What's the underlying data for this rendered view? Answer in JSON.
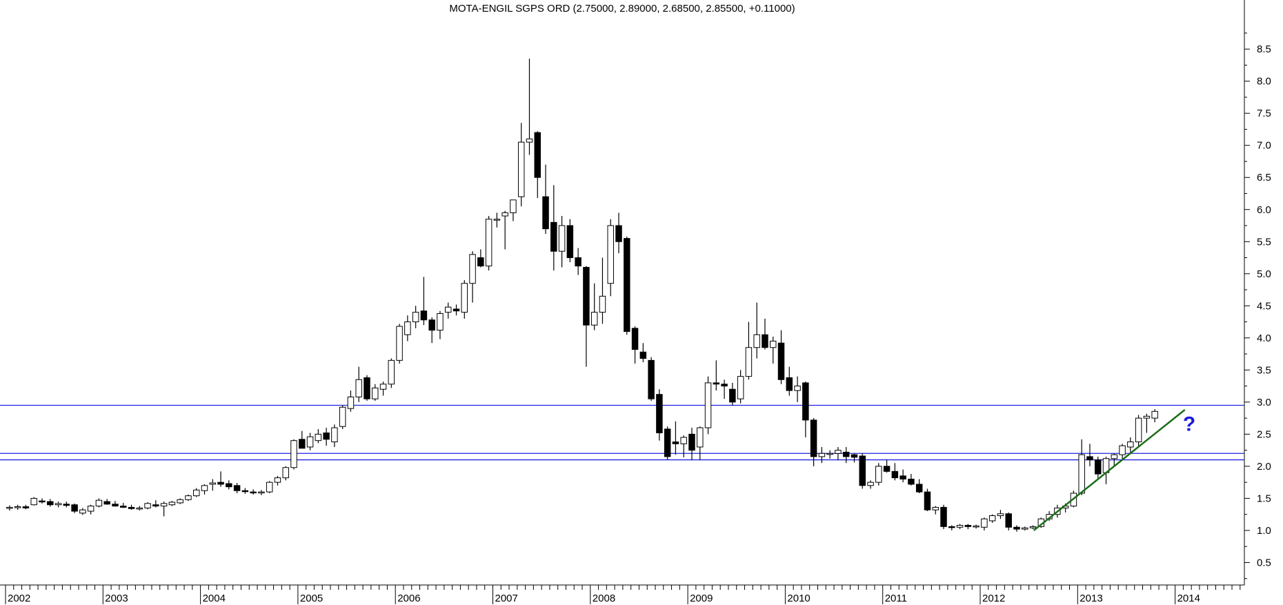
{
  "chart_data": {
    "type": "candlestick",
    "title": "MOTA-ENGIL SGPS ORD (2.75000, 2.89000, 2.68500, 2.85500, +0.11000)",
    "xlabel": "",
    "ylabel": "",
    "period": "monthly",
    "y_ticks": [
      0.5,
      1.0,
      1.5,
      2.0,
      2.5,
      3.0,
      3.5,
      4.0,
      4.5,
      5.0,
      5.5,
      6.0,
      6.5,
      7.0,
      7.5,
      8.0,
      8.5
    ],
    "y_tick_labels": [
      "0.5",
      "1.0",
      "1.5",
      "2.0",
      "2.5",
      "3.0",
      "3.5",
      "4.0",
      "4.5",
      "5.0",
      "5.5",
      "6.0",
      "6.5",
      "7.0",
      "7.5",
      "8.0",
      "8.5"
    ],
    "ylim": [
      0.15,
      9.05
    ],
    "x_year_labels": [
      "2002",
      "2003",
      "2004",
      "2005",
      "2006",
      "2007",
      "2008",
      "2009",
      "2010",
      "2011",
      "2012",
      "2013",
      "2014"
    ],
    "x_start_year": 2002,
    "x_end_year": 2015,
    "horizontal_lines": [
      2.95,
      2.2,
      2.1
    ],
    "trendline": {
      "from": {
        "x": 2012.55,
        "y": 1.0
      },
      "to": {
        "x": 2014.1,
        "y": 2.88
      }
    },
    "annotation": {
      "text": "?",
      "x": 2014.08,
      "y": 2.55
    },
    "colors": {
      "up_fill": "#ffffff",
      "down_fill": "#000000",
      "hline": "#2020e0",
      "trend": "#1a6e1a",
      "annotation": "#1a1ae0",
      "axis": "#000000"
    },
    "ohlc_monthly": [
      [
        1.36,
        1.39,
        1.31,
        1.36
      ],
      [
        1.36,
        1.4,
        1.32,
        1.37
      ],
      [
        1.37,
        1.4,
        1.33,
        1.35
      ],
      [
        1.4,
        1.52,
        1.39,
        1.5
      ],
      [
        1.46,
        1.5,
        1.42,
        1.45
      ],
      [
        1.45,
        1.49,
        1.37,
        1.4
      ],
      [
        1.4,
        1.45,
        1.36,
        1.42
      ],
      [
        1.41,
        1.45,
        1.36,
        1.39
      ],
      [
        1.4,
        1.42,
        1.27,
        1.3
      ],
      [
        1.27,
        1.35,
        1.24,
        1.32
      ],
      [
        1.3,
        1.4,
        1.25,
        1.38
      ],
      [
        1.38,
        1.5,
        1.36,
        1.47
      ],
      [
        1.45,
        1.49,
        1.4,
        1.41
      ],
      [
        1.41,
        1.46,
        1.37,
        1.38
      ],
      [
        1.38,
        1.43,
        1.35,
        1.36
      ],
      [
        1.36,
        1.4,
        1.32,
        1.34
      ],
      [
        1.34,
        1.38,
        1.31,
        1.35
      ],
      [
        1.35,
        1.44,
        1.33,
        1.42
      ],
      [
        1.4,
        1.47,
        1.36,
        1.38
      ],
      [
        1.38,
        1.45,
        1.22,
        1.42
      ],
      [
        1.4,
        1.46,
        1.38,
        1.44
      ],
      [
        1.43,
        1.5,
        1.41,
        1.48
      ],
      [
        1.48,
        1.56,
        1.46,
        1.54
      ],
      [
        1.54,
        1.66,
        1.52,
        1.63
      ],
      [
        1.62,
        1.72,
        1.56,
        1.7
      ],
      [
        1.72,
        1.8,
        1.62,
        1.74
      ],
      [
        1.75,
        1.92,
        1.68,
        1.72
      ],
      [
        1.73,
        1.78,
        1.64,
        1.68
      ],
      [
        1.7,
        1.74,
        1.58,
        1.62
      ],
      [
        1.62,
        1.66,
        1.57,
        1.61
      ],
      [
        1.6,
        1.64,
        1.56,
        1.59
      ],
      [
        1.59,
        1.63,
        1.55,
        1.6
      ],
      [
        1.6,
        1.77,
        1.58,
        1.75
      ],
      [
        1.75,
        1.85,
        1.7,
        1.82
      ],
      [
        1.82,
        2.0,
        1.78,
        1.98
      ],
      [
        1.98,
        2.42,
        1.95,
        2.4
      ],
      [
        2.42,
        2.55,
        2.3,
        2.28
      ],
      [
        2.3,
        2.52,
        2.25,
        2.46
      ],
      [
        2.4,
        2.58,
        2.36,
        2.5
      ],
      [
        2.52,
        2.6,
        2.32,
        2.42
      ],
      [
        2.38,
        2.65,
        2.3,
        2.6
      ],
      [
        2.62,
        2.95,
        2.58,
        2.92
      ],
      [
        2.9,
        3.18,
        2.85,
        3.08
      ],
      [
        3.08,
        3.55,
        3.0,
        3.35
      ],
      [
        3.38,
        3.42,
        3.02,
        3.05
      ],
      [
        3.05,
        3.28,
        3.02,
        3.22
      ],
      [
        3.2,
        3.32,
        3.1,
        3.28
      ],
      [
        3.28,
        3.68,
        3.22,
        3.65
      ],
      [
        3.65,
        4.22,
        3.6,
        4.18
      ],
      [
        4.05,
        4.35,
        3.95,
        4.25
      ],
      [
        4.25,
        4.5,
        4.15,
        4.4
      ],
      [
        4.42,
        4.95,
        4.2,
        4.28
      ],
      [
        4.28,
        4.32,
        3.92,
        4.12
      ],
      [
        4.12,
        4.42,
        3.98,
        4.38
      ],
      [
        4.4,
        4.55,
        4.3,
        4.48
      ],
      [
        4.45,
        4.52,
        4.35,
        4.42
      ],
      [
        4.4,
        4.9,
        4.3,
        4.85
      ],
      [
        4.85,
        5.35,
        4.55,
        5.3
      ],
      [
        5.25,
        5.38,
        5.1,
        5.12
      ],
      [
        5.12,
        5.9,
        5.05,
        5.85
      ],
      [
        5.85,
        5.95,
        5.72,
        5.85
      ],
      [
        5.9,
        5.98,
        5.38,
        5.95
      ],
      [
        5.95,
        6.15,
        5.82,
        6.15
      ],
      [
        6.2,
        7.35,
        6.05,
        7.05
      ],
      [
        7.05,
        8.35,
        6.85,
        7.1
      ],
      [
        7.2,
        7.22,
        6.18,
        6.5
      ],
      [
        6.2,
        6.7,
        5.62,
        5.7
      ],
      [
        5.8,
        6.38,
        5.05,
        5.35
      ],
      [
        5.35,
        5.9,
        5.1,
        5.75
      ],
      [
        5.75,
        5.85,
        5.18,
        5.25
      ],
      [
        5.25,
        5.4,
        4.98,
        5.12
      ],
      [
        5.1,
        5.12,
        3.55,
        4.2
      ],
      [
        4.2,
        4.85,
        4.12,
        4.4
      ],
      [
        4.4,
        5.25,
        4.22,
        4.65
      ],
      [
        4.85,
        5.85,
        4.65,
        5.75
      ],
      [
        5.75,
        5.95,
        5.32,
        5.5
      ],
      [
        5.55,
        5.58,
        4.05,
        4.1
      ],
      [
        4.15,
        4.18,
        3.6,
        3.82
      ],
      [
        3.78,
        3.92,
        3.62,
        3.68
      ],
      [
        3.65,
        3.7,
        3.02,
        3.05
      ],
      [
        3.12,
        3.2,
        2.4,
        2.52
      ],
      [
        2.58,
        2.62,
        2.1,
        2.15
      ],
      [
        2.38,
        2.7,
        2.18,
        2.35
      ],
      [
        2.35,
        2.48,
        2.14,
        2.45
      ],
      [
        2.5,
        2.6,
        2.1,
        2.25
      ],
      [
        2.3,
        2.62,
        2.1,
        2.6
      ],
      [
        2.6,
        3.4,
        2.5,
        3.3
      ],
      [
        3.3,
        3.65,
        3.18,
        3.28
      ],
      [
        3.28,
        3.35,
        3.05,
        3.25
      ],
      [
        3.2,
        3.3,
        2.95,
        3.0
      ],
      [
        3.05,
        3.5,
        2.98,
        3.4
      ],
      [
        3.4,
        4.25,
        3.35,
        3.85
      ],
      [
        3.85,
        4.55,
        3.68,
        4.05
      ],
      [
        4.05,
        4.3,
        3.82,
        3.85
      ],
      [
        3.85,
        4.02,
        3.6,
        3.95
      ],
      [
        3.92,
        4.12,
        3.28,
        3.35
      ],
      [
        3.38,
        3.55,
        3.1,
        3.18
      ],
      [
        3.18,
        3.4,
        3.0,
        3.25
      ],
      [
        3.3,
        3.32,
        2.45,
        2.72
      ],
      [
        2.72,
        2.75,
        2.0,
        2.15
      ],
      [
        2.15,
        2.3,
        2.05,
        2.2
      ],
      [
        2.2,
        2.25,
        2.12,
        2.2
      ],
      [
        2.2,
        2.3,
        2.1,
        2.25
      ],
      [
        2.22,
        2.3,
        2.05,
        2.15
      ],
      [
        2.18,
        2.2,
        2.06,
        2.14
      ],
      [
        2.16,
        2.2,
        1.65,
        1.7
      ],
      [
        1.7,
        1.78,
        1.65,
        1.75
      ],
      [
        1.75,
        2.05,
        1.7,
        2.0
      ],
      [
        2.0,
        2.1,
        1.9,
        1.92
      ],
      [
        1.92,
        2.05,
        1.78,
        1.82
      ],
      [
        1.85,
        1.95,
        1.75,
        1.8
      ],
      [
        1.8,
        1.88,
        1.7,
        1.72
      ],
      [
        1.72,
        1.8,
        1.58,
        1.6
      ],
      [
        1.6,
        1.65,
        1.3,
        1.32
      ],
      [
        1.32,
        1.38,
        1.25,
        1.36
      ],
      [
        1.36,
        1.4,
        1.02,
        1.06
      ],
      [
        1.06,
        1.08,
        1.0,
        1.05
      ],
      [
        1.05,
        1.1,
        1.02,
        1.08
      ],
      [
        1.08,
        1.1,
        1.02,
        1.06
      ],
      [
        1.06,
        1.09,
        1.03,
        1.07
      ],
      [
        1.05,
        1.2,
        1.0,
        1.18
      ],
      [
        1.15,
        1.25,
        1.12,
        1.23
      ],
      [
        1.23,
        1.32,
        1.18,
        1.26
      ],
      [
        1.26,
        1.28,
        1.0,
        1.05
      ],
      [
        1.05,
        1.08,
        0.98,
        1.02
      ],
      [
        1.02,
        1.06,
        1.0,
        1.04
      ],
      [
        1.04,
        1.08,
        1.02,
        1.06
      ],
      [
        1.06,
        1.2,
        1.04,
        1.18
      ],
      [
        1.18,
        1.3,
        1.15,
        1.25
      ],
      [
        1.25,
        1.4,
        1.2,
        1.35
      ],
      [
        1.35,
        1.42,
        1.28,
        1.38
      ],
      [
        1.38,
        1.62,
        1.36,
        1.58
      ],
      [
        1.58,
        2.42,
        1.55,
        2.18
      ],
      [
        2.15,
        2.35,
        2.0,
        2.1
      ],
      [
        2.1,
        2.15,
        1.8,
        1.88
      ],
      [
        1.9,
        2.15,
        1.72,
        2.12
      ],
      [
        2.12,
        2.2,
        2.0,
        2.18
      ],
      [
        2.18,
        2.35,
        2.1,
        2.32
      ],
      [
        2.3,
        2.45,
        2.2,
        2.38
      ],
      [
        2.38,
        2.8,
        2.3,
        2.75
      ],
      [
        2.75,
        2.82,
        2.52,
        2.78
      ],
      [
        2.75,
        2.89,
        2.685,
        2.855
      ]
    ]
  }
}
